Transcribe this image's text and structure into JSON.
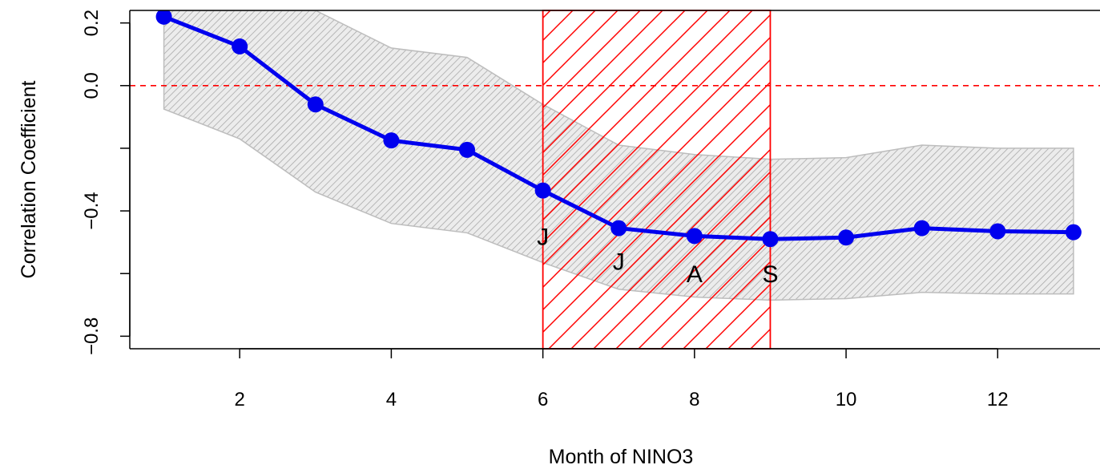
{
  "chart_data": {
    "type": "line",
    "xlabel": "Month of NINO3",
    "ylabel": "Correlation Coefficient",
    "xlim": [
      0.55,
      13.35
    ],
    "ylim": [
      -0.84,
      0.24
    ],
    "x_ticks": [
      2,
      4,
      6,
      8,
      10,
      12
    ],
    "x_tick_labels": [
      "2",
      "4",
      "6",
      "8",
      "10",
      "12"
    ],
    "y_ticks": [
      -0.8,
      -0.4,
      0.0,
      0.2
    ],
    "y_tick_labels": [
      "−0.8",
      "−0.4",
      "0.0",
      "0.2"
    ],
    "y_minor_ticks": [
      -0.6,
      -0.2
    ],
    "reference_line": {
      "y": 0.0,
      "style": "dashed",
      "color": "#ff0000"
    },
    "highlight_region": {
      "x_start": 6,
      "x_end": 9,
      "color": "#ff0000",
      "fill": "hatched"
    },
    "season_labels": [
      {
        "text": "J",
        "x": 6,
        "y": -0.48
      },
      {
        "text": "J",
        "x": 7,
        "y": -0.56
      },
      {
        "text": "A",
        "x": 8,
        "y": -0.6
      },
      {
        "text": "S",
        "x": 9,
        "y": -0.6
      }
    ],
    "series": [
      {
        "color": "#0000ee",
        "x": [
          1,
          2,
          3,
          4,
          5,
          6,
          7,
          8,
          9,
          10,
          11,
          12,
          13
        ],
        "values": [
          0.22,
          0.125,
          -0.06,
          -0.175,
          -0.205,
          -0.335,
          -0.455,
          -0.48,
          -0.49,
          -0.485,
          -0.455,
          -0.465,
          -0.468
        ]
      }
    ],
    "confidence_band": {
      "color": "#bdbdbd",
      "x": [
        1,
        2,
        3,
        4,
        5,
        6,
        7,
        8,
        9,
        10,
        11,
        12,
        13
      ],
      "upper": [
        0.24,
        0.24,
        0.24,
        0.12,
        0.09,
        -0.06,
        -0.19,
        -0.22,
        -0.235,
        -0.23,
        -0.19,
        -0.2,
        -0.2
      ],
      "lower": [
        -0.075,
        -0.17,
        -0.34,
        -0.44,
        -0.47,
        -0.565,
        -0.65,
        -0.675,
        -0.685,
        -0.68,
        -0.66,
        -0.665,
        -0.665
      ]
    }
  }
}
